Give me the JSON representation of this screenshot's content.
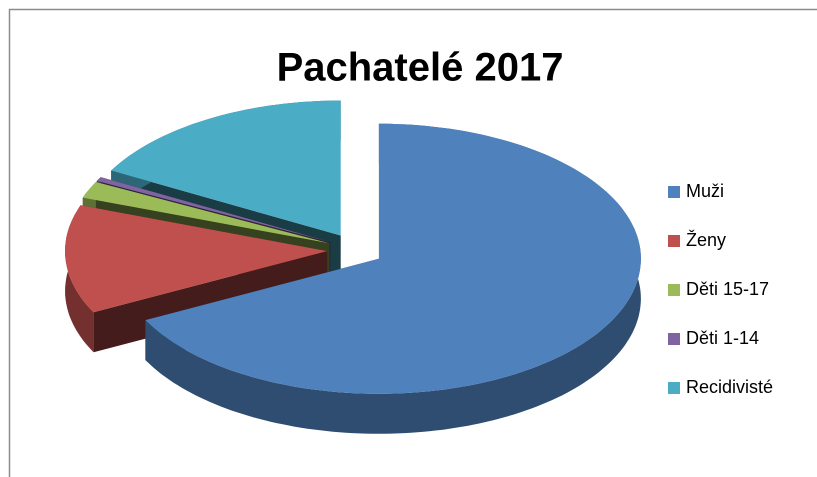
{
  "chart_data": {
    "type": "pie3d",
    "title": "Pachatelé 2017",
    "categories": [
      "Muži",
      "Ženy",
      "Děti 15-17",
      "Děti 1-14",
      "Recidivisté"
    ],
    "values": [
      67.5,
      13,
      2,
      0.5,
      17
    ],
    "colors": [
      "#4f81bd",
      "#c0504d",
      "#9bbb59",
      "#8064a2",
      "#4bacc6"
    ],
    "legend": "right"
  }
}
